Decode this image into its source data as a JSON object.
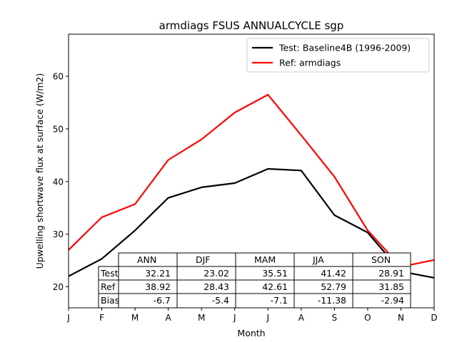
{
  "chart_data": {
    "type": "line",
    "title": "armdiags FSUS ANNUALCYCLE sgp",
    "xlabel": "Month",
    "ylabel": "Upwelling shortwave flux at surface (W/m2)",
    "categories": [
      "J",
      "F",
      "M",
      "A",
      "M",
      "J",
      "J",
      "A",
      "S",
      "O",
      "N",
      "D"
    ],
    "ylim": [
      16,
      68
    ],
    "yticks": [
      20,
      30,
      40,
      50,
      60
    ],
    "grid": false,
    "legend_position": "top-right",
    "series": [
      {
        "name": "Test: Baseline4B (1996-2009)",
        "color": "#000000",
        "values": [
          22.0,
          25.3,
          30.7,
          36.9,
          38.9,
          39.7,
          42.4,
          42.1,
          33.6,
          30.3,
          22.9,
          21.7
        ]
      },
      {
        "name": "Ref: armdiags",
        "color": "#ff0000",
        "values": [
          27.0,
          33.2,
          35.7,
          44.1,
          48.0,
          53.1,
          56.5,
          48.8,
          40.9,
          30.7,
          23.8,
          25.1
        ]
      }
    ],
    "table": {
      "columns": [
        "ANN",
        "DJF",
        "MAM",
        "JJA",
        "SON"
      ],
      "rows": [
        {
          "label": "Test",
          "values": [
            "32.21",
            "23.02",
            "35.51",
            "41.42",
            "28.91"
          ]
        },
        {
          "label": "Ref",
          "values": [
            "38.92",
            "28.43",
            "42.61",
            "52.79",
            "31.85"
          ]
        },
        {
          "label": "Bias",
          "values": [
            "-6.7",
            "-5.4",
            "-7.1",
            "-11.38",
            "-2.94"
          ]
        }
      ]
    }
  }
}
